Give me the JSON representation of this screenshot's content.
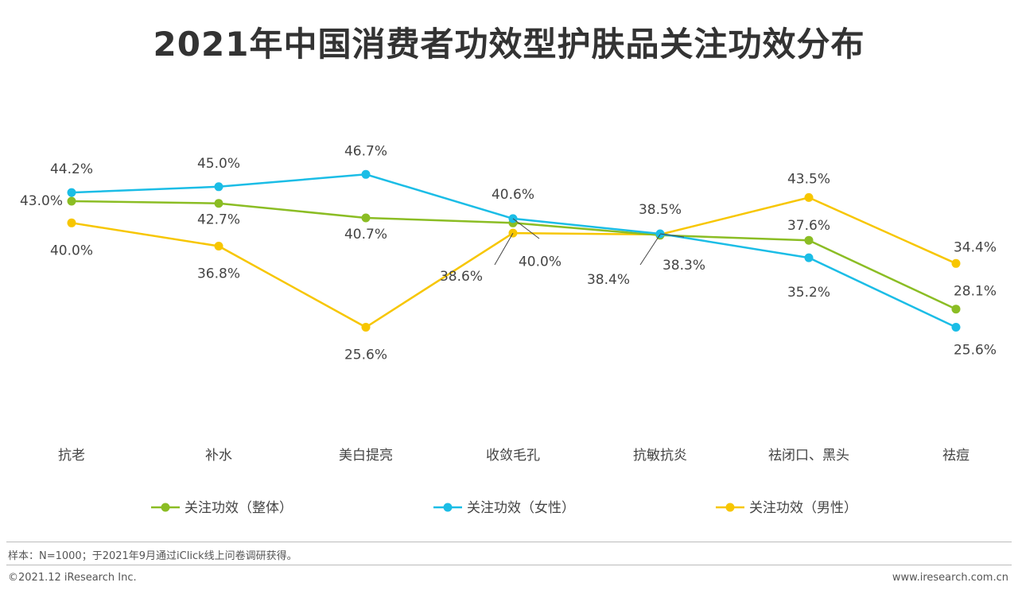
{
  "title": "2021年中国消费者功效型护肤品关注功效分布",
  "chart_data": {
    "type": "line",
    "categories": [
      "抗老",
      "补水",
      "美白提亮",
      "收敛毛孔",
      "抗敏抗炎",
      "祛闭口、黑头",
      "祛痘"
    ],
    "series": [
      {
        "name": "关注功效（整体）",
        "color": "#8bbd24",
        "values": [
          43.0,
          42.7,
          40.7,
          40.0,
          38.3,
          37.6,
          28.1
        ],
        "labels": [
          "43.0%",
          "42.7%",
          "40.7%",
          "40.0%",
          "38.3%",
          "37.6%",
          "28.1%"
        ]
      },
      {
        "name": "关注功效（女性）",
        "color": "#1bbde6",
        "values": [
          44.2,
          45.0,
          46.7,
          40.6,
          38.5,
          35.2,
          25.6
        ],
        "labels": [
          "44.2%",
          "45.0%",
          "46.7%",
          "40.6%",
          "38.5%",
          "35.2%",
          "25.6%"
        ]
      },
      {
        "name": "关注功效（男性）",
        "color": "#f7c600",
        "values": [
          40.0,
          36.8,
          25.6,
          38.6,
          38.4,
          43.5,
          34.4
        ],
        "labels": [
          "40.0%",
          "36.8%",
          "25.6%",
          "38.6%",
          "38.4%",
          "43.5%",
          "34.4%"
        ]
      }
    ],
    "legend_position": "bottom",
    "grid": false
  },
  "footer": {
    "sample": "样本：N=1000；于2021年9月通过iClick线上问卷调研获得。",
    "copyright": "©2021.12 iResearch Inc.",
    "website": "www.iresearch.com.cn"
  }
}
